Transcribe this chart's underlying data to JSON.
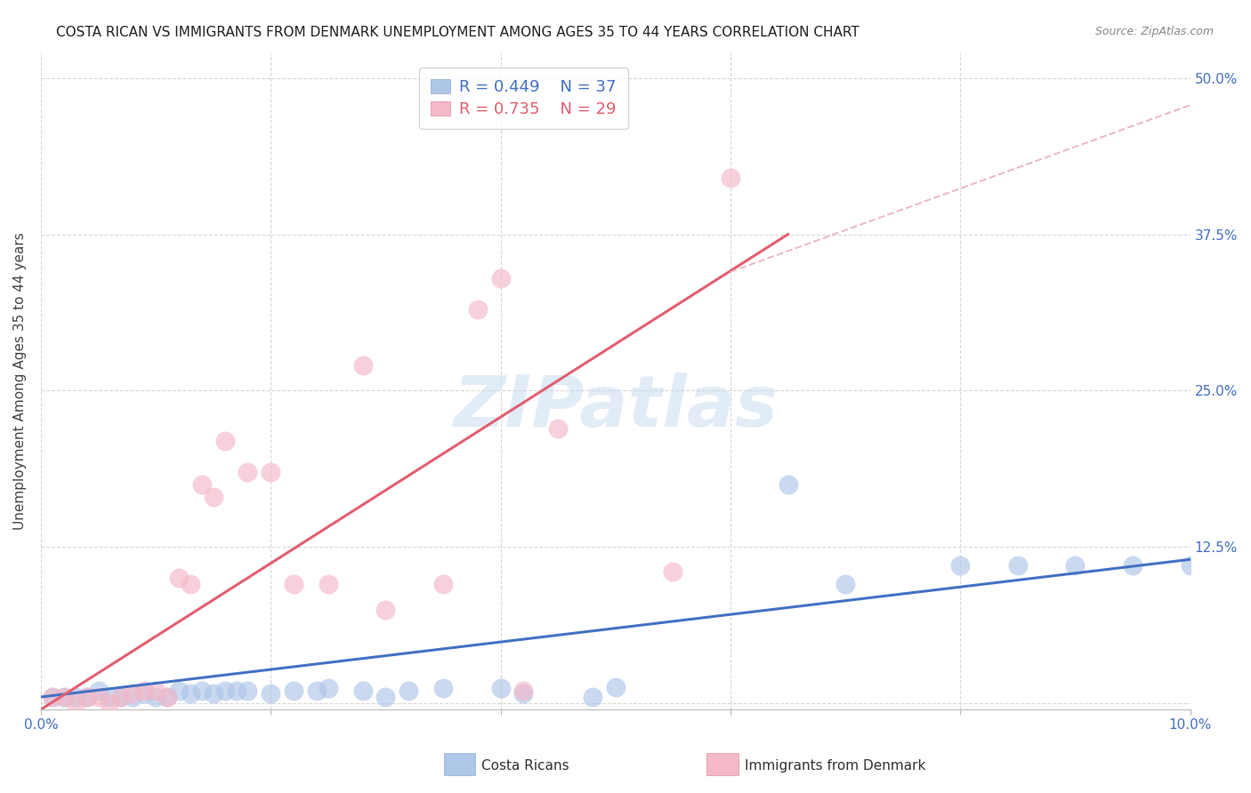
{
  "title": "COSTA RICAN VS IMMIGRANTS FROM DENMARK UNEMPLOYMENT AMONG AGES 35 TO 44 YEARS CORRELATION CHART",
  "source": "Source: ZipAtlas.com",
  "ylabel": "Unemployment Among Ages 35 to 44 years",
  "watermark": "ZIPatlas",
  "xlim": [
    0.0,
    0.1
  ],
  "ylim": [
    -0.005,
    0.52
  ],
  "xticks": [
    0.0,
    0.02,
    0.04,
    0.06,
    0.08,
    0.1
  ],
  "yticks": [
    0.0,
    0.125,
    0.25,
    0.375,
    0.5
  ],
  "ytick_labels_right": [
    "",
    "12.5%",
    "25.0%",
    "37.5%",
    "50.0%"
  ],
  "xtick_labels": [
    "0.0%",
    "",
    "",
    "",
    "",
    "10.0%"
  ],
  "legend_R1": "0.449",
  "legend_N1": "37",
  "legend_R2": "0.735",
  "legend_N2": "29",
  "legend_label1": "Costa Ricans",
  "legend_label2": "Immigrants from Denmark",
  "blue_scatter_x": [
    0.001,
    0.002,
    0.003,
    0.004,
    0.005,
    0.006,
    0.007,
    0.008,
    0.009,
    0.01,
    0.011,
    0.012,
    0.013,
    0.014,
    0.015,
    0.016,
    0.017,
    0.018,
    0.02,
    0.022,
    0.024,
    0.025,
    0.028,
    0.03,
    0.032,
    0.035,
    0.04,
    0.042,
    0.048,
    0.05,
    0.065,
    0.07,
    0.08,
    0.085,
    0.09,
    0.095,
    0.1
  ],
  "blue_scatter_y": [
    0.005,
    0.005,
    0.005,
    0.005,
    0.01,
    0.005,
    0.005,
    0.005,
    0.008,
    0.005,
    0.005,
    0.01,
    0.008,
    0.01,
    0.008,
    0.01,
    0.01,
    0.01,
    0.008,
    0.01,
    0.01,
    0.012,
    0.01,
    0.005,
    0.01,
    0.012,
    0.012,
    0.008,
    0.005,
    0.013,
    0.175,
    0.095,
    0.11,
    0.11,
    0.11,
    0.11,
    0.11
  ],
  "pink_scatter_x": [
    0.001,
    0.002,
    0.003,
    0.004,
    0.005,
    0.006,
    0.007,
    0.008,
    0.009,
    0.01,
    0.011,
    0.012,
    0.013,
    0.014,
    0.015,
    0.016,
    0.018,
    0.02,
    0.022,
    0.025,
    0.028,
    0.03,
    0.035,
    0.038,
    0.04,
    0.042,
    0.045,
    0.055,
    0.06
  ],
  "pink_scatter_y": [
    0.005,
    0.005,
    0.0,
    0.005,
    0.005,
    0.0,
    0.005,
    0.008,
    0.01,
    0.01,
    0.005,
    0.1,
    0.095,
    0.175,
    0.165,
    0.21,
    0.185,
    0.185,
    0.095,
    0.095,
    0.27,
    0.075,
    0.095,
    0.315,
    0.34,
    0.01,
    0.22,
    0.105,
    0.42
  ],
  "blue_line_x": [
    0.0,
    0.1
  ],
  "blue_line_y": [
    0.005,
    0.115
  ],
  "pink_line_x": [
    0.0,
    0.065
  ],
  "pink_line_y": [
    -0.005,
    0.375
  ],
  "dashed_line_x": [
    0.06,
    0.105
  ],
  "dashed_line_y": [
    0.345,
    0.495
  ],
  "grid_color": "#d8d8d8",
  "background_color": "#ffffff",
  "blue_color": "#4472c4",
  "pink_color": "#e06070",
  "scatter_blue": "#aec6e8",
  "scatter_pink": "#f4b8c8",
  "tick_color": "#4472c4"
}
